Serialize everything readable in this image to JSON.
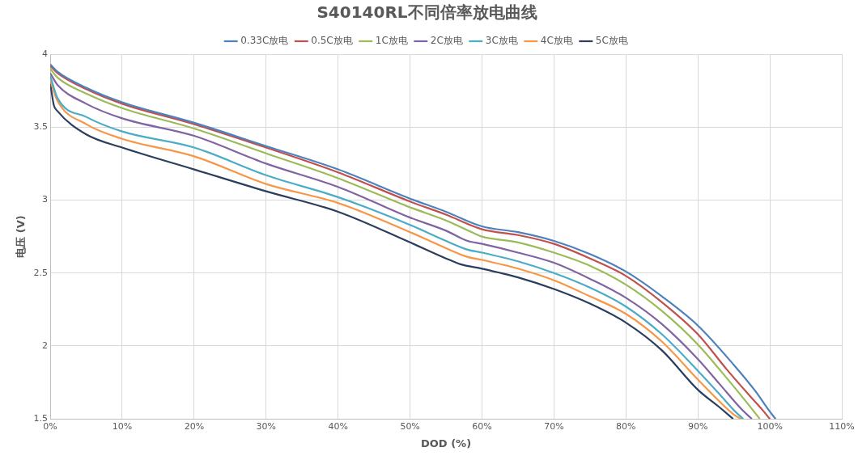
{
  "chart_data": {
    "type": "line",
    "title": "S40140RL不同倍率放电曲线",
    "xlabel": "DOD (%)",
    "ylabel": "电压 (V)",
    "xlim": [
      0,
      110
    ],
    "xticks": [
      {
        "value": 0,
        "label": "0%"
      },
      {
        "value": 10,
        "label": "10%"
      },
      {
        "value": 20,
        "label": "20%"
      },
      {
        "value": 30,
        "label": "30%"
      },
      {
        "value": 40,
        "label": "40%"
      },
      {
        "value": 50,
        "label": "50%"
      },
      {
        "value": 60,
        "label": "60%"
      },
      {
        "value": 70,
        "label": "70%"
      },
      {
        "value": 80,
        "label": "80%"
      },
      {
        "value": 90,
        "label": "90%"
      },
      {
        "value": 100,
        "label": "100%"
      },
      {
        "value": 110,
        "label": "110%"
      }
    ],
    "ylim": [
      1.5,
      4
    ],
    "yticks": [
      1.5,
      2,
      2.5,
      3,
      3.5,
      4
    ],
    "grid": true,
    "legend": "top",
    "marker": "none",
    "line_style": "solid",
    "series": [
      {
        "name": "0.33C放电",
        "color": "#4f81bd",
        "x": [
          0,
          1,
          5,
          10,
          20,
          30,
          40,
          50,
          55,
          60,
          65,
          70,
          75,
          80,
          85,
          90,
          95,
          98,
          100,
          100.8
        ],
        "values": [
          3.93,
          3.88,
          3.77,
          3.67,
          3.53,
          3.37,
          3.21,
          3.01,
          2.92,
          2.82,
          2.78,
          2.72,
          2.63,
          2.51,
          2.34,
          2.14,
          1.87,
          1.69,
          1.55,
          1.5
        ]
      },
      {
        "name": "0.5C放电",
        "color": "#c0504d",
        "x": [
          0,
          1,
          5,
          10,
          20,
          30,
          40,
          50,
          55,
          60,
          65,
          70,
          75,
          80,
          85,
          90,
          94,
          97,
          99,
          100
        ],
        "values": [
          3.92,
          3.87,
          3.76,
          3.66,
          3.52,
          3.36,
          3.19,
          2.99,
          2.9,
          2.8,
          2.76,
          2.7,
          2.6,
          2.48,
          2.3,
          2.08,
          1.84,
          1.67,
          1.56,
          1.5
        ]
      },
      {
        "name": "1C放电",
        "color": "#9bbb59",
        "x": [
          0,
          1,
          5,
          10,
          20,
          30,
          40,
          50,
          55,
          59,
          60,
          65,
          70,
          75,
          80,
          85,
          90,
          94,
          97,
          98.6
        ],
        "values": [
          3.9,
          3.84,
          3.73,
          3.63,
          3.49,
          3.32,
          3.15,
          2.95,
          2.86,
          2.77,
          2.75,
          2.71,
          2.64,
          2.55,
          2.42,
          2.24,
          2.01,
          1.78,
          1.6,
          1.5
        ]
      },
      {
        "name": "2C放电",
        "color": "#8064a2",
        "x": [
          0,
          1,
          5,
          10,
          20,
          30,
          40,
          50,
          55,
          58,
          60,
          65,
          70,
          75,
          80,
          85,
          90,
          93,
          96,
          97.5
        ],
        "values": [
          3.87,
          3.79,
          3.66,
          3.56,
          3.44,
          3.25,
          3.09,
          2.88,
          2.79,
          2.72,
          2.7,
          2.64,
          2.57,
          2.46,
          2.33,
          2.15,
          1.91,
          1.74,
          1.57,
          1.5
        ]
      },
      {
        "name": "3C放电",
        "color": "#4bacc6",
        "x": [
          0,
          1,
          5,
          10,
          20,
          30,
          40,
          50,
          55,
          58,
          60,
          65,
          70,
          75,
          80,
          85,
          90,
          93,
          95,
          96.3
        ],
        "values": [
          3.85,
          3.7,
          3.57,
          3.47,
          3.36,
          3.17,
          3.02,
          2.83,
          2.72,
          2.66,
          2.64,
          2.58,
          2.5,
          2.4,
          2.27,
          2.08,
          1.83,
          1.67,
          1.56,
          1.5
        ]
      },
      {
        "name": "4C放电",
        "color": "#f79646",
        "x": [
          0,
          1,
          5,
          10,
          20,
          30,
          40,
          50,
          55,
          58,
          60,
          65,
          70,
          75,
          80,
          85,
          90,
          93,
          95,
          96
        ],
        "values": [
          3.82,
          3.68,
          3.52,
          3.42,
          3.3,
          3.11,
          2.98,
          2.78,
          2.67,
          2.61,
          2.59,
          2.53,
          2.45,
          2.34,
          2.22,
          2.03,
          1.77,
          1.62,
          1.53,
          1.5
        ]
      },
      {
        "name": "5C放电",
        "color": "#2c3e5c",
        "x": [
          0,
          0.5,
          1,
          5,
          10,
          20,
          30,
          40,
          50,
          55,
          57,
          60,
          65,
          70,
          75,
          80,
          85,
          90,
          93,
          94.9
        ],
        "values": [
          3.8,
          3.65,
          3.61,
          3.45,
          3.36,
          3.21,
          3.06,
          2.92,
          2.71,
          2.6,
          2.56,
          2.53,
          2.47,
          2.39,
          2.29,
          2.16,
          1.97,
          1.7,
          1.58,
          1.5
        ]
      }
    ]
  }
}
